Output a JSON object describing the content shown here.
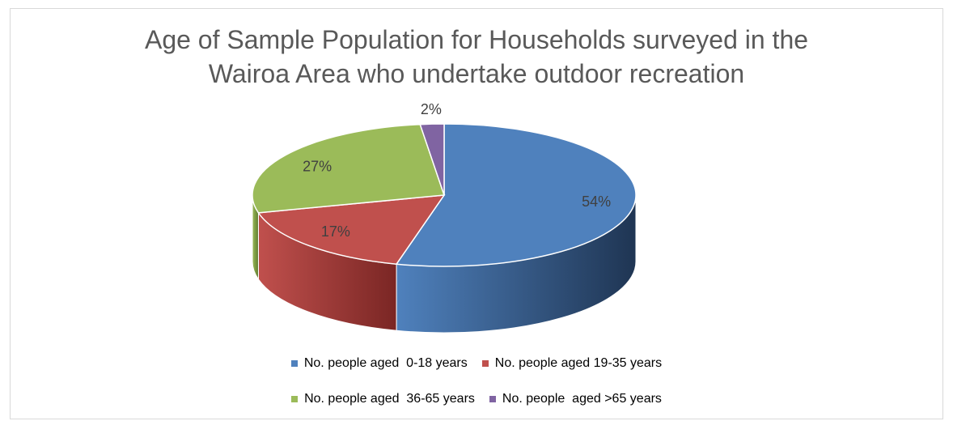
{
  "chart_data": {
    "type": "pie",
    "title_lines": [
      "Age of Sample Population for Households surveyed in the",
      "Wairoa Area who undertake outdoor recreation"
    ],
    "slices": [
      {
        "label": "No. people aged  0-18 years",
        "value": 54,
        "data_label": "54%",
        "color": "#4F81BD",
        "side_color": "#1F3553"
      },
      {
        "label": "No. people aged 19-35 years",
        "value": 17,
        "data_label": "17%",
        "color": "#C0504D",
        "side_color": "#7A2624"
      },
      {
        "label": "No. people aged  36-65 years",
        "value": 27,
        "data_label": "27%",
        "color": "#9BBB59",
        "side_color": "#5E7A2C"
      },
      {
        "label": "No. people  aged >65 years",
        "value": 2,
        "data_label": "2%",
        "color": "#8064A2",
        "side_color": "#4A3566"
      }
    ],
    "legend_placement": "bottom"
  }
}
